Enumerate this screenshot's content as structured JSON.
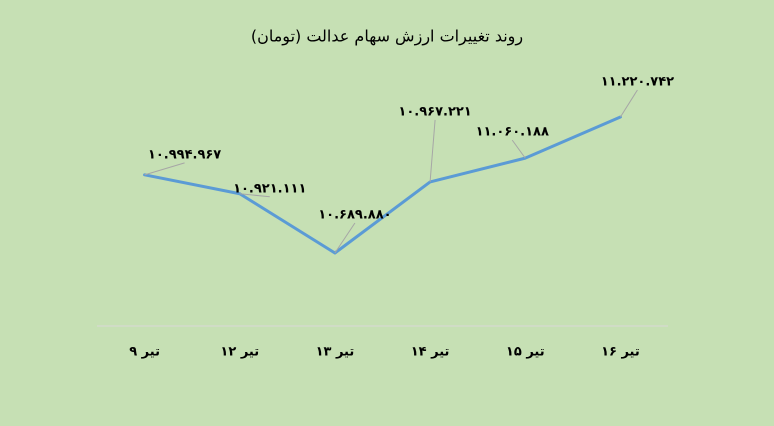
{
  "chart_data": {
    "type": "line",
    "title": "روند تغییرات ارزش سهام عدالت (تومان)",
    "categories": [
      "۹ تیر",
      "۱۲ تیر",
      "۱۳ تیر",
      "۱۴ تیر",
      "۱۵ تیر",
      "۱۶ تیر"
    ],
    "values": [
      10994967,
      10921111,
      10689880,
      10967221,
      11060188,
      11220742
    ],
    "value_labels": [
      "۱۰.۹۹۴.۹۶۷",
      "۱۰.۹۲۱.۱۱۱",
      "۱۰.۶۸۹.۸۸۰",
      "۱۰.۹۶۷.۲۲۱",
      "۱۱.۰۶۰.۱۸۸",
      "۱۱.۲۲۰.۷۴۲"
    ],
    "color": "#5b9bd5"
  }
}
